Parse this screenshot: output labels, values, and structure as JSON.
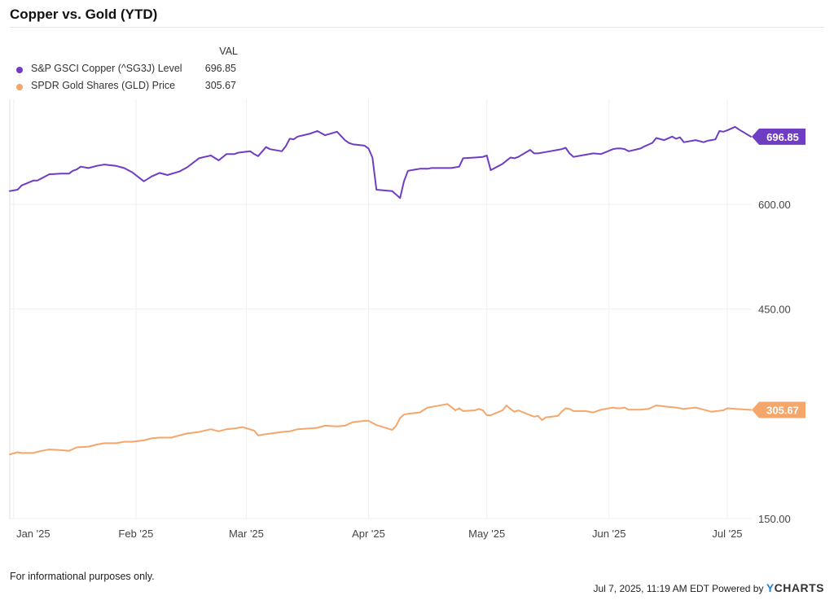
{
  "header": {
    "title": "Copper vs. Gold (YTD)"
  },
  "legend": {
    "column_header": "VAL"
  },
  "footer": {
    "disclaimer": "For informational purposes only.",
    "timestamp": "Jul 7, 2025, 11:19 AM EDT Powered by",
    "brand_y": "Y",
    "brand_rest": "CHARTS"
  },
  "colors": {
    "copper": "#6f3cc4",
    "gold": "#f5a66a",
    "grid": "#eeeeee",
    "axis_text": "#444444"
  },
  "chart_data": {
    "type": "line",
    "title": "Copper vs. Gold (YTD)",
    "xlabel": "",
    "ylabel": "",
    "ylim": [
      150,
      750
    ],
    "y_ticks": [
      150,
      450,
      600
    ],
    "y_tick_labels": [
      "150.00",
      "450.00",
      "600.00"
    ],
    "x_ticks": [
      "2025-01-01",
      "2025-02-01",
      "2025-03-01",
      "2025-04-01",
      "2025-05-01",
      "2025-06-01",
      "2025-07-01"
    ],
    "x_tick_labels": [
      "Jan '25",
      "Feb '25",
      "Mar '25",
      "Apr '25",
      "May '25",
      "Jun '25",
      "Jul '25"
    ],
    "grid": true,
    "legend_position": "top-left",
    "series": [
      {
        "name": "S&P GSCI Copper (^SG3J) Level",
        "last_value": "696.85",
        "color": "#6f3cc4",
        "points": [
          [
            "2024-12-31",
            619
          ],
          [
            "2025-01-02",
            621
          ],
          [
            "2025-01-03",
            627
          ],
          [
            "2025-01-06",
            634
          ],
          [
            "2025-01-07",
            634
          ],
          [
            "2025-01-08",
            637
          ],
          [
            "2025-01-10",
            643
          ],
          [
            "2025-01-13",
            644
          ],
          [
            "2025-01-15",
            644
          ],
          [
            "2025-01-16",
            648
          ],
          [
            "2025-01-17",
            650
          ],
          [
            "2025-01-18",
            654
          ],
          [
            "2025-01-20",
            652
          ],
          [
            "2025-01-22",
            655
          ],
          [
            "2025-01-24",
            657
          ],
          [
            "2025-01-27",
            655
          ],
          [
            "2025-01-29",
            652
          ],
          [
            "2025-01-31",
            646
          ],
          [
            "2025-02-03",
            633
          ],
          [
            "2025-02-05",
            640
          ],
          [
            "2025-02-07",
            645
          ],
          [
            "2025-02-09",
            642
          ],
          [
            "2025-02-12",
            647
          ],
          [
            "2025-02-14",
            653
          ],
          [
            "2025-02-17",
            666
          ],
          [
            "2025-02-20",
            670
          ],
          [
            "2025-02-22",
            663
          ],
          [
            "2025-02-24",
            672
          ],
          [
            "2025-02-26",
            672
          ],
          [
            "2025-02-27",
            674
          ],
          [
            "2025-03-02",
            676
          ],
          [
            "2025-03-03",
            672
          ],
          [
            "2025-03-04",
            669
          ],
          [
            "2025-03-06",
            682
          ],
          [
            "2025-03-07",
            679
          ],
          [
            "2025-03-10",
            676
          ],
          [
            "2025-03-11",
            683
          ],
          [
            "2025-03-12",
            694
          ],
          [
            "2025-03-13",
            693
          ],
          [
            "2025-03-14",
            697
          ],
          [
            "2025-03-17",
            701
          ],
          [
            "2025-03-19",
            705
          ],
          [
            "2025-03-20",
            702
          ],
          [
            "2025-03-21",
            699
          ],
          [
            "2025-03-24",
            704
          ],
          [
            "2025-03-26",
            692
          ],
          [
            "2025-03-27",
            688
          ],
          [
            "2025-03-28",
            686
          ],
          [
            "2025-03-31",
            684
          ],
          [
            "2025-04-01",
            680
          ],
          [
            "2025-04-02",
            667
          ],
          [
            "2025-04-03",
            621
          ],
          [
            "2025-04-07",
            619
          ],
          [
            "2025-04-08",
            614
          ],
          [
            "2025-04-09",
            609
          ],
          [
            "2025-04-10",
            633
          ],
          [
            "2025-04-11",
            648
          ],
          [
            "2025-04-14",
            651
          ],
          [
            "2025-04-16",
            651
          ],
          [
            "2025-04-17",
            652
          ],
          [
            "2025-04-22",
            652
          ],
          [
            "2025-04-24",
            654
          ],
          [
            "2025-04-25",
            666
          ],
          [
            "2025-04-28",
            667
          ],
          [
            "2025-04-30",
            668
          ],
          [
            "2025-05-01",
            670
          ],
          [
            "2025-05-02",
            649
          ],
          [
            "2025-05-05",
            658
          ],
          [
            "2025-05-07",
            667
          ],
          [
            "2025-05-08",
            666
          ],
          [
            "2025-05-09",
            668
          ],
          [
            "2025-05-12",
            678
          ],
          [
            "2025-05-13",
            673
          ],
          [
            "2025-05-14",
            673
          ],
          [
            "2025-05-16",
            675
          ],
          [
            "2025-05-19",
            678
          ],
          [
            "2025-05-20",
            679
          ],
          [
            "2025-05-21",
            681
          ],
          [
            "2025-05-22",
            673
          ],
          [
            "2025-05-23",
            668
          ],
          [
            "2025-05-26",
            671
          ],
          [
            "2025-05-28",
            673
          ],
          [
            "2025-05-30",
            672
          ],
          [
            "2025-06-02",
            679
          ],
          [
            "2025-06-03",
            680
          ],
          [
            "2025-06-04",
            680
          ],
          [
            "2025-06-05",
            679
          ],
          [
            "2025-06-06",
            676
          ],
          [
            "2025-06-09",
            680
          ],
          [
            "2025-06-10",
            683
          ],
          [
            "2025-06-12",
            688
          ],
          [
            "2025-06-13",
            695
          ],
          [
            "2025-06-15",
            692
          ],
          [
            "2025-06-17",
            697
          ],
          [
            "2025-06-18",
            694
          ],
          [
            "2025-06-19",
            696
          ],
          [
            "2025-06-20",
            689
          ],
          [
            "2025-06-23",
            692
          ],
          [
            "2025-06-25",
            689
          ],
          [
            "2025-06-26",
            691
          ],
          [
            "2025-06-27",
            692
          ],
          [
            "2025-06-28",
            693
          ],
          [
            "2025-06-29",
            705
          ],
          [
            "2025-06-30",
            704
          ],
          [
            "2025-07-01",
            706
          ],
          [
            "2025-07-03",
            711
          ],
          [
            "2025-07-04",
            707
          ],
          [
            "2025-07-07",
            696.85
          ]
        ]
      },
      {
        "name": "SPDR Gold Shares (GLD) Price",
        "last_value": "305.67",
        "color": "#f5a66a",
        "points": [
          [
            "2024-12-31",
            242
          ],
          [
            "2025-01-02",
            245
          ],
          [
            "2025-01-03",
            244
          ],
          [
            "2025-01-06",
            244
          ],
          [
            "2025-01-08",
            247
          ],
          [
            "2025-01-10",
            249
          ],
          [
            "2025-01-13",
            248
          ],
          [
            "2025-01-15",
            247
          ],
          [
            "2025-01-17",
            252
          ],
          [
            "2025-01-20",
            253
          ],
          [
            "2025-01-22",
            256
          ],
          [
            "2025-01-24",
            258
          ],
          [
            "2025-01-27",
            258
          ],
          [
            "2025-01-29",
            260
          ],
          [
            "2025-01-31",
            260
          ],
          [
            "2025-02-03",
            262
          ],
          [
            "2025-02-05",
            265
          ],
          [
            "2025-02-07",
            266
          ],
          [
            "2025-02-10",
            266
          ],
          [
            "2025-02-12",
            269
          ],
          [
            "2025-02-14",
            272
          ],
          [
            "2025-02-17",
            274
          ],
          [
            "2025-02-20",
            278
          ],
          [
            "2025-02-22",
            275
          ],
          [
            "2025-02-24",
            278
          ],
          [
            "2025-02-26",
            279
          ],
          [
            "2025-02-28",
            281
          ],
          [
            "2025-03-03",
            276
          ],
          [
            "2025-03-04",
            269
          ],
          [
            "2025-03-06",
            271
          ],
          [
            "2025-03-10",
            274
          ],
          [
            "2025-03-12",
            275
          ],
          [
            "2025-03-14",
            278
          ],
          [
            "2025-03-17",
            279
          ],
          [
            "2025-03-19",
            280
          ],
          [
            "2025-03-21",
            283
          ],
          [
            "2025-03-24",
            282
          ],
          [
            "2025-03-26",
            283
          ],
          [
            "2025-03-28",
            288
          ],
          [
            "2025-03-31",
            290
          ],
          [
            "2025-04-01",
            290
          ],
          [
            "2025-04-03",
            284
          ],
          [
            "2025-04-07",
            277
          ],
          [
            "2025-04-08",
            283
          ],
          [
            "2025-04-09",
            294
          ],
          [
            "2025-04-10",
            299
          ],
          [
            "2025-04-11",
            300
          ],
          [
            "2025-04-14",
            302
          ],
          [
            "2025-04-16",
            309
          ],
          [
            "2025-04-17",
            310
          ],
          [
            "2025-04-21",
            314
          ],
          [
            "2025-04-22",
            310
          ],
          [
            "2025-04-23",
            305
          ],
          [
            "2025-04-24",
            308
          ],
          [
            "2025-04-25",
            304
          ],
          [
            "2025-04-28",
            305
          ],
          [
            "2025-04-29",
            307
          ],
          [
            "2025-04-30",
            305
          ],
          [
            "2025-05-01",
            298
          ],
          [
            "2025-05-02",
            298
          ],
          [
            "2025-05-05",
            305
          ],
          [
            "2025-05-06",
            312
          ],
          [
            "2025-05-07",
            307
          ],
          [
            "2025-05-08",
            303
          ],
          [
            "2025-05-09",
            305
          ],
          [
            "2025-05-12",
            298
          ],
          [
            "2025-05-13",
            296
          ],
          [
            "2025-05-14",
            297
          ],
          [
            "2025-05-15",
            291
          ],
          [
            "2025-05-16",
            295
          ],
          [
            "2025-05-19",
            297
          ],
          [
            "2025-05-20",
            303
          ],
          [
            "2025-05-21",
            308
          ],
          [
            "2025-05-22",
            307
          ],
          [
            "2025-05-23",
            304
          ],
          [
            "2025-05-26",
            304
          ],
          [
            "2025-05-28",
            302
          ],
          [
            "2025-05-30",
            306
          ],
          [
            "2025-06-02",
            309
          ],
          [
            "2025-06-03",
            308
          ],
          [
            "2025-06-04",
            308
          ],
          [
            "2025-06-05",
            309
          ],
          [
            "2025-06-06",
            306
          ],
          [
            "2025-06-09",
            306
          ],
          [
            "2025-06-11",
            307
          ],
          [
            "2025-06-13",
            312
          ],
          [
            "2025-06-16",
            310
          ],
          [
            "2025-06-18",
            309
          ],
          [
            "2025-06-20",
            307
          ],
          [
            "2025-06-23",
            309
          ],
          [
            "2025-06-25",
            306
          ],
          [
            "2025-06-27",
            303
          ],
          [
            "2025-06-30",
            305
          ],
          [
            "2025-07-01",
            308
          ],
          [
            "2025-07-03",
            307
          ],
          [
            "2025-07-07",
            305.67
          ]
        ]
      }
    ]
  }
}
